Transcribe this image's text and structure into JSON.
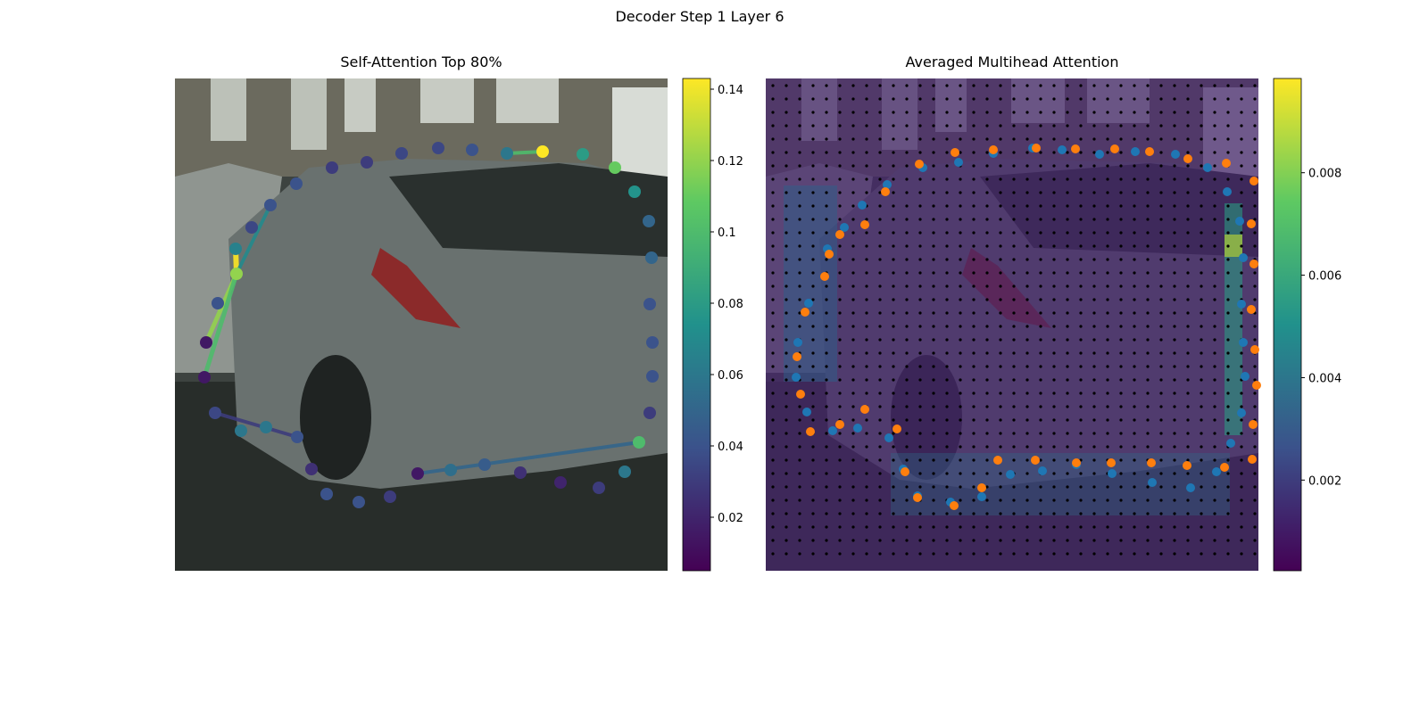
{
  "chart_data": [
    {
      "type": "attention-points",
      "title": "Self-Attention Top 80%",
      "values": [
        0.03,
        0.03,
        0.035,
        0.035,
        0.04,
        0.06,
        0.143,
        0.08,
        0.11,
        0.075,
        0.05,
        0.05,
        0.04,
        0.04,
        0.04,
        0.03,
        0.1,
        0.06,
        0.03,
        0.02,
        0.025,
        0.045,
        0.055,
        0.015,
        0.03,
        0.04,
        0.04,
        0.025,
        0.04,
        0.06,
        0.06,
        0.035,
        0.015,
        0.015,
        0.04,
        0.12,
        0.065,
        0.035,
        0.04,
        0.04
      ],
      "clim": [
        0.005,
        0.143
      ],
      "cticks": [
        0.02,
        0.04,
        0.06,
        0.08,
        0.1,
        0.12,
        0.14
      ]
    },
    {
      "type": "attention-heatmap",
      "title": "Averaged Multihead Attention",
      "clim": [
        0.00023,
        0.00984
      ],
      "cticks": [
        0.002,
        0.004,
        0.006,
        0.008
      ]
    }
  ],
  "title": "Decoder Step 1 Layer 6"
}
